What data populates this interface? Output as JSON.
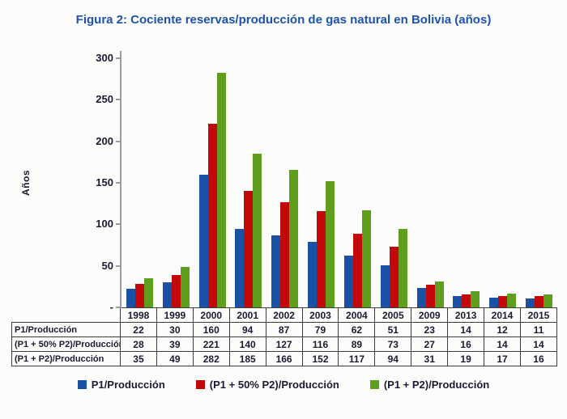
{
  "title": "Figura 2: Cociente reservas/producción de gas natural en Bolivia (años)",
  "colors": {
    "title_blue": "#1e52b0",
    "axis_gray": "#9a9a9a",
    "table_border": "#3c3c3c",
    "text_dark": "#1a1a33"
  },
  "chart_data": {
    "type": "bar",
    "title": "Figura 2: Cociente reservas/producción de gas natural en Bolivia (años)",
    "xlabel": "",
    "ylabel": "Años",
    "ylim": [
      0,
      300
    ],
    "grid": false,
    "legend_position": "bottom",
    "categories": [
      "1998",
      "1999",
      "2000",
      "2001",
      "2002",
      "2003",
      "2004",
      "2005",
      "2009",
      "2013",
      "2014",
      "2015"
    ],
    "series": [
      {
        "name": "P1/Producción",
        "color": "#1b51a5",
        "values": [
          22,
          30,
          160,
          94,
          87,
          79,
          62,
          51,
          23,
          14,
          12,
          11
        ]
      },
      {
        "name": "(P1 + 50% P2)/Producción",
        "color": "#c20808",
        "values": [
          28,
          39,
          221,
          140,
          127,
          116,
          89,
          73,
          27,
          16,
          14,
          14
        ]
      },
      {
        "name": "(P1 + P2)/Producción",
        "color": "#5f9e1f",
        "values": [
          35,
          49,
          282,
          185,
          166,
          152,
          117,
          94,
          31,
          19,
          17,
          16
        ]
      }
    ],
    "yticks": [
      {
        "value": 300,
        "label": "300"
      },
      {
        "value": 250,
        "label": "250"
      },
      {
        "value": 200,
        "label": "200"
      },
      {
        "value": 150,
        "label": "150"
      },
      {
        "value": 100,
        "label": "100"
      },
      {
        "value": 50,
        "label": "50"
      },
      {
        "value": 0,
        "label": "-"
      }
    ]
  }
}
